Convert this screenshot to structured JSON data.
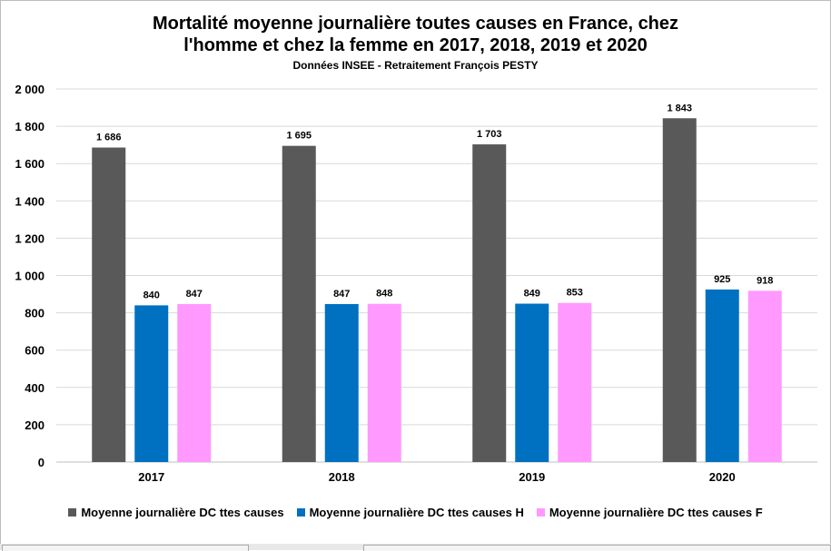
{
  "chart_data": {
    "type": "bar",
    "title_lines": [
      "Mortalité moyenne journalière toutes causes en France, chez",
      "l'homme et chez la femme en 2017, 2018, 2019 et 2020"
    ],
    "subtitle": "Données INSEE - Retraitement François PESTY",
    "categories": [
      "2017",
      "2018",
      "2019",
      "2020"
    ],
    "series": [
      {
        "name": "Moyenne journalière DC ttes causes",
        "color": "#595959",
        "values": [
          1686,
          1695,
          1703,
          1843
        ],
        "labels": [
          "1 686",
          "1 695",
          "1 703",
          "1 843"
        ]
      },
      {
        "name": "Moyenne journalière DC ttes causes H",
        "color": "#0070c0",
        "values": [
          840,
          847,
          849,
          925
        ],
        "labels": [
          "840",
          "847",
          "849",
          "925"
        ]
      },
      {
        "name": "Moyenne journalière DC ttes causes F",
        "color": "#ff99ff",
        "values": [
          847,
          848,
          853,
          918
        ],
        "labels": [
          "847",
          "848",
          "853",
          "918"
        ]
      }
    ],
    "ylim": [
      0,
      2000
    ],
    "yticks": [
      0,
      200,
      400,
      600,
      800,
      1000,
      1200,
      1400,
      1600,
      1800,
      2000
    ],
    "ytick_labels": [
      "0",
      "200",
      "400",
      "600",
      "800",
      "1 000",
      "1 200",
      "1 400",
      "1 600",
      "1 800",
      "2 000"
    ],
    "grid": true,
    "legend_position": "bottom"
  }
}
